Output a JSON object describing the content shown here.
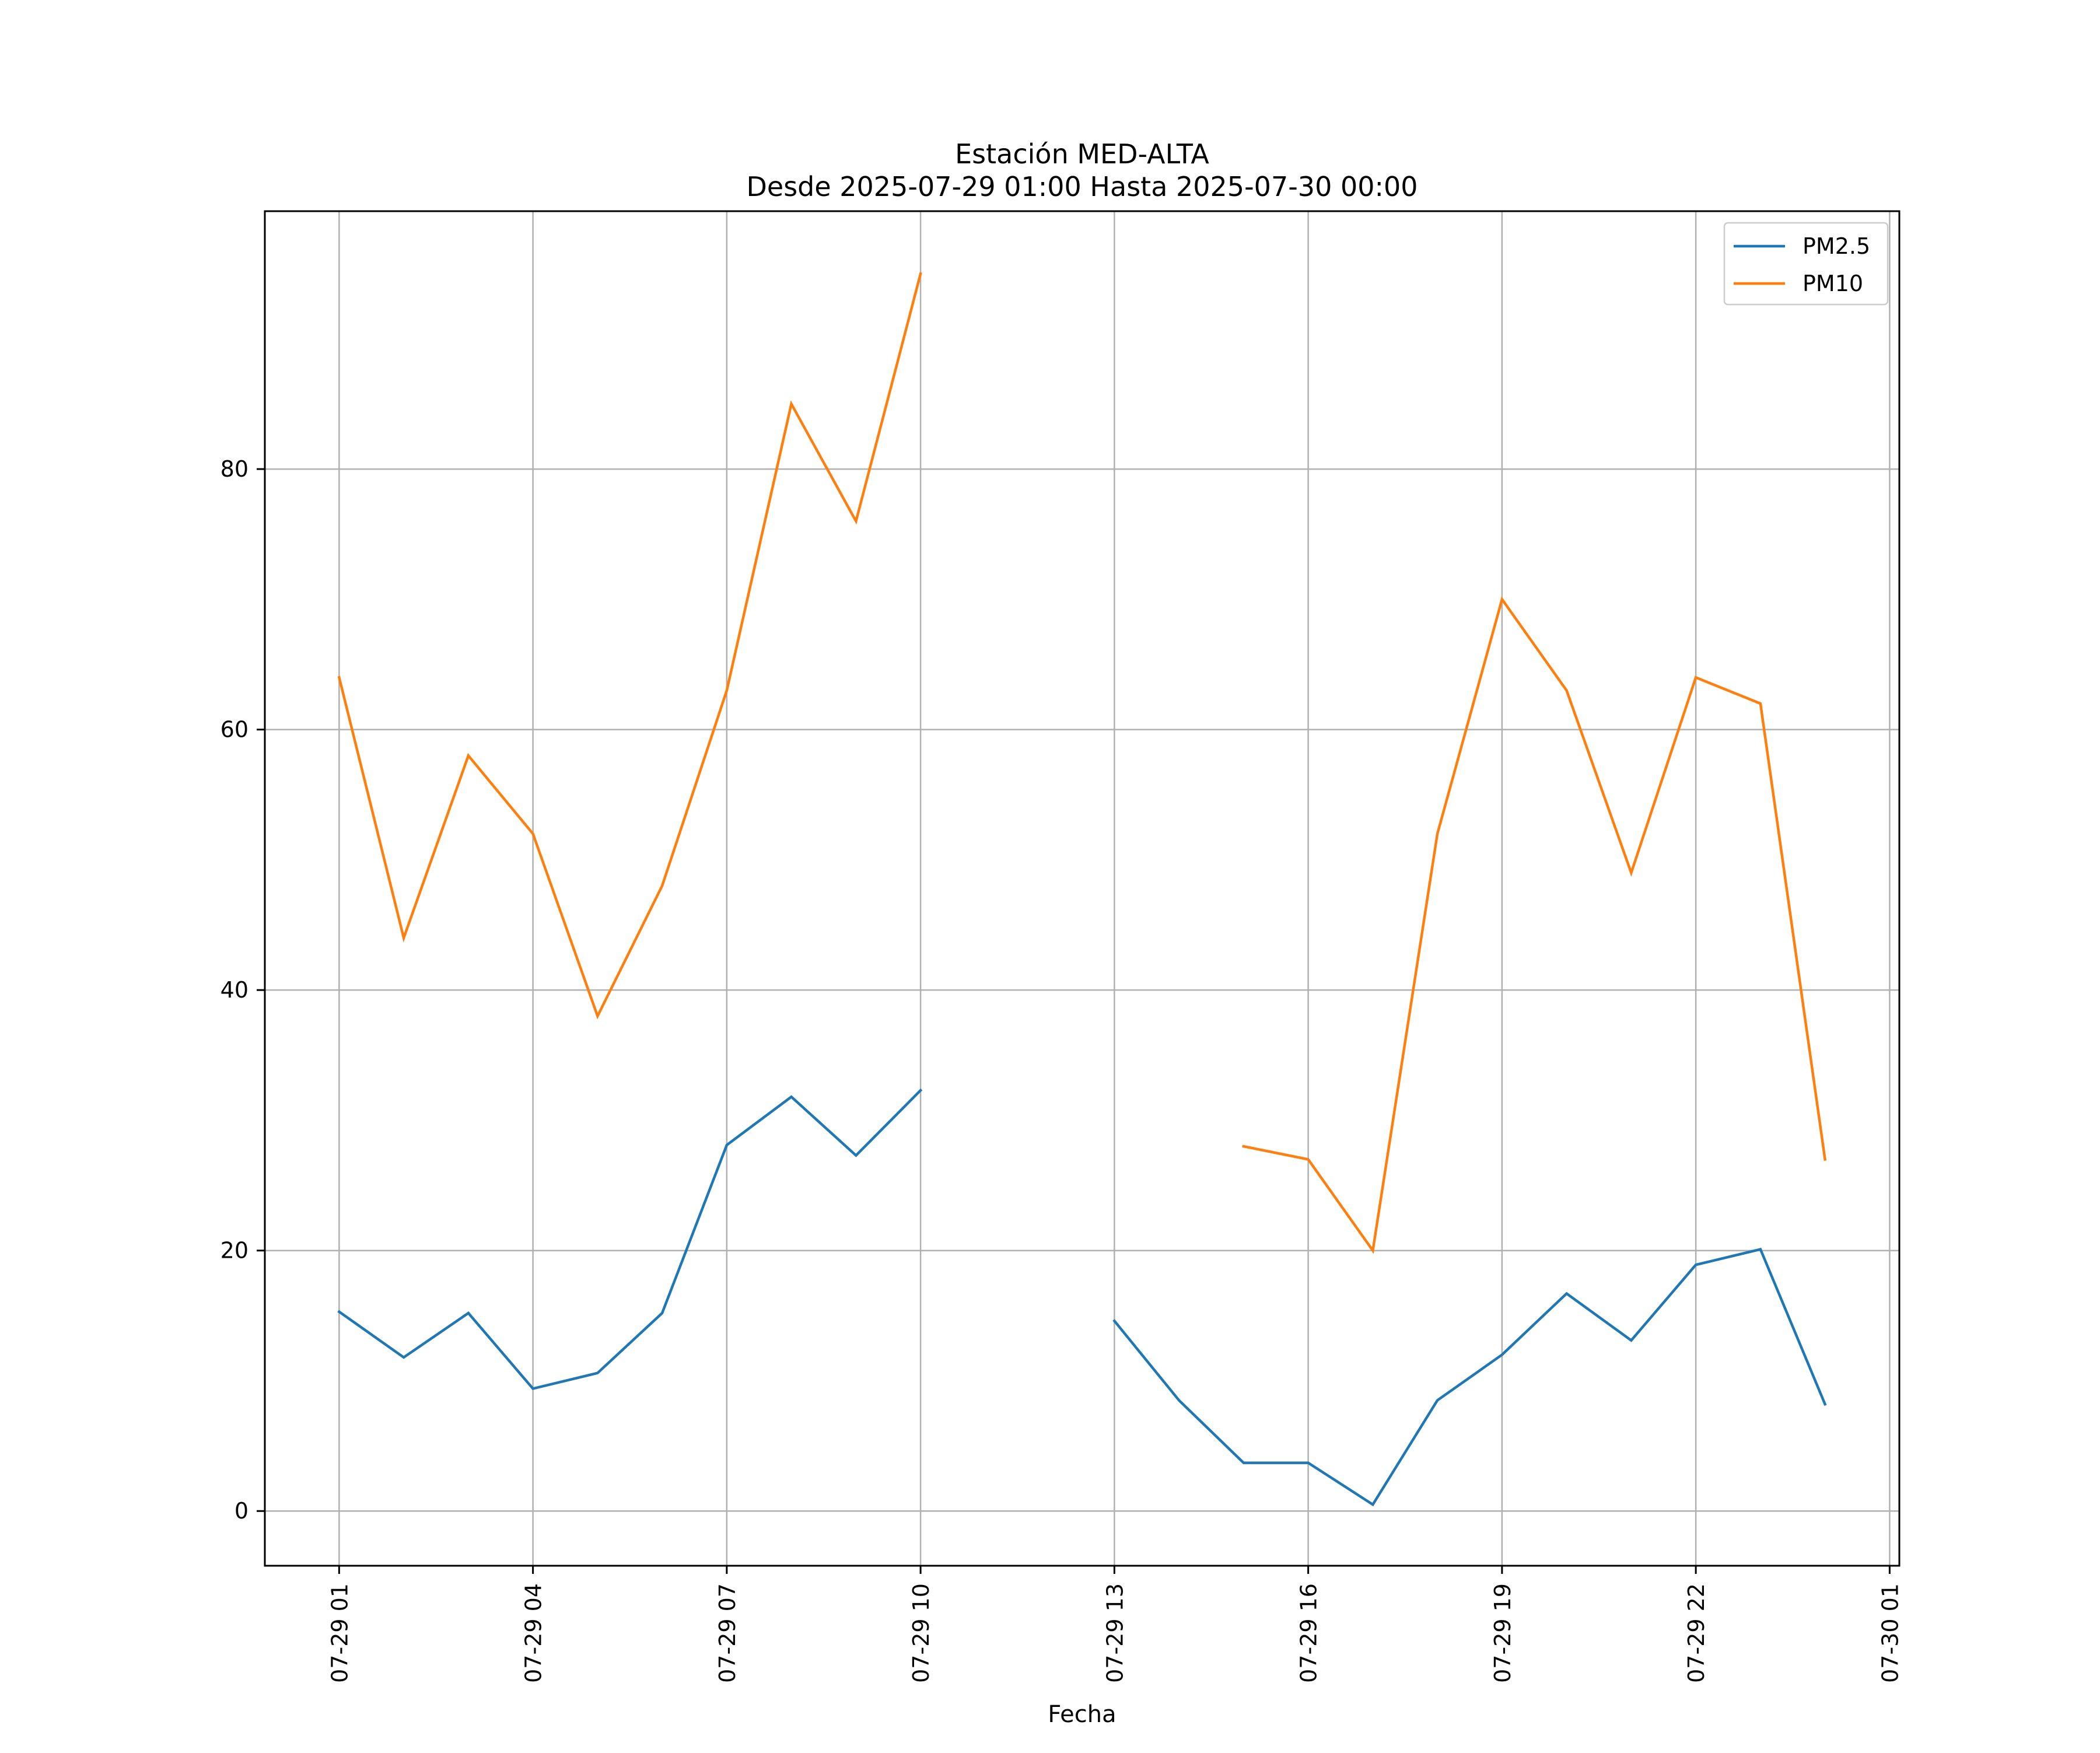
{
  "chart_data": {
    "type": "line",
    "title": "Estación MED-ALTA",
    "subtitle": "Desde 2025-07-29 01:00 Hasta 2025-07-30 00:00",
    "xlabel": "Fecha",
    "ylabel": "",
    "x_type": "datetime",
    "xlim": [
      "2025-07-28 23:51",
      "2025-07-30 01:09"
    ],
    "ylim": [
      -4.2,
      99.8
    ],
    "grid": true,
    "legend_position": "top-right",
    "x_ticks": [
      {
        "value": "2025-07-29 01:00",
        "label": "07-29 01"
      },
      {
        "value": "2025-07-29 04:00",
        "label": "07-29 04"
      },
      {
        "value": "2025-07-29 07:00",
        "label": "07-29 07"
      },
      {
        "value": "2025-07-29 10:00",
        "label": "07-29 10"
      },
      {
        "value": "2025-07-29 13:00",
        "label": "07-29 13"
      },
      {
        "value": "2025-07-29 16:00",
        "label": "07-29 16"
      },
      {
        "value": "2025-07-29 19:00",
        "label": "07-29 19"
      },
      {
        "value": "2025-07-29 22:00",
        "label": "07-29 22"
      },
      {
        "value": "2025-07-30 01:00",
        "label": "07-30 01"
      }
    ],
    "y_ticks": [
      {
        "value": 0,
        "label": "0"
      },
      {
        "value": 20,
        "label": "20"
      },
      {
        "value": 40,
        "label": "40"
      },
      {
        "value": 60,
        "label": "60"
      },
      {
        "value": 80,
        "label": "80"
      }
    ],
    "x": [
      "2025-07-29 01:00",
      "2025-07-29 02:00",
      "2025-07-29 03:00",
      "2025-07-29 04:00",
      "2025-07-29 05:00",
      "2025-07-29 06:00",
      "2025-07-29 07:00",
      "2025-07-29 08:00",
      "2025-07-29 09:00",
      "2025-07-29 10:00",
      "2025-07-29 11:00",
      "2025-07-29 12:00",
      "2025-07-29 13:00",
      "2025-07-29 14:00",
      "2025-07-29 15:00",
      "2025-07-29 16:00",
      "2025-07-29 17:00",
      "2025-07-29 18:00",
      "2025-07-29 19:00",
      "2025-07-29 20:00",
      "2025-07-29 21:00",
      "2025-07-29 22:00",
      "2025-07-29 23:00",
      "2025-07-30 00:00"
    ],
    "series": [
      {
        "name": "PM2.5",
        "color": "#1f77b4",
        "values": [
          15.3,
          11.8,
          15.2,
          9.4,
          10.6,
          15.2,
          28.1,
          31.8,
          27.3,
          32.3,
          null,
          null,
          14.6,
          8.5,
          3.7,
          3.7,
          0.5,
          8.5,
          12.0,
          16.7,
          13.1,
          18.9,
          20.1,
          8.2
        ]
      },
      {
        "name": "PM10",
        "color": "#ff7f0e",
        "values": [
          64,
          44,
          58,
          52,
          38,
          48,
          63,
          85,
          76,
          95,
          null,
          null,
          null,
          null,
          28,
          27,
          20,
          52,
          70,
          63,
          49,
          64,
          62,
          27
        ]
      }
    ]
  }
}
